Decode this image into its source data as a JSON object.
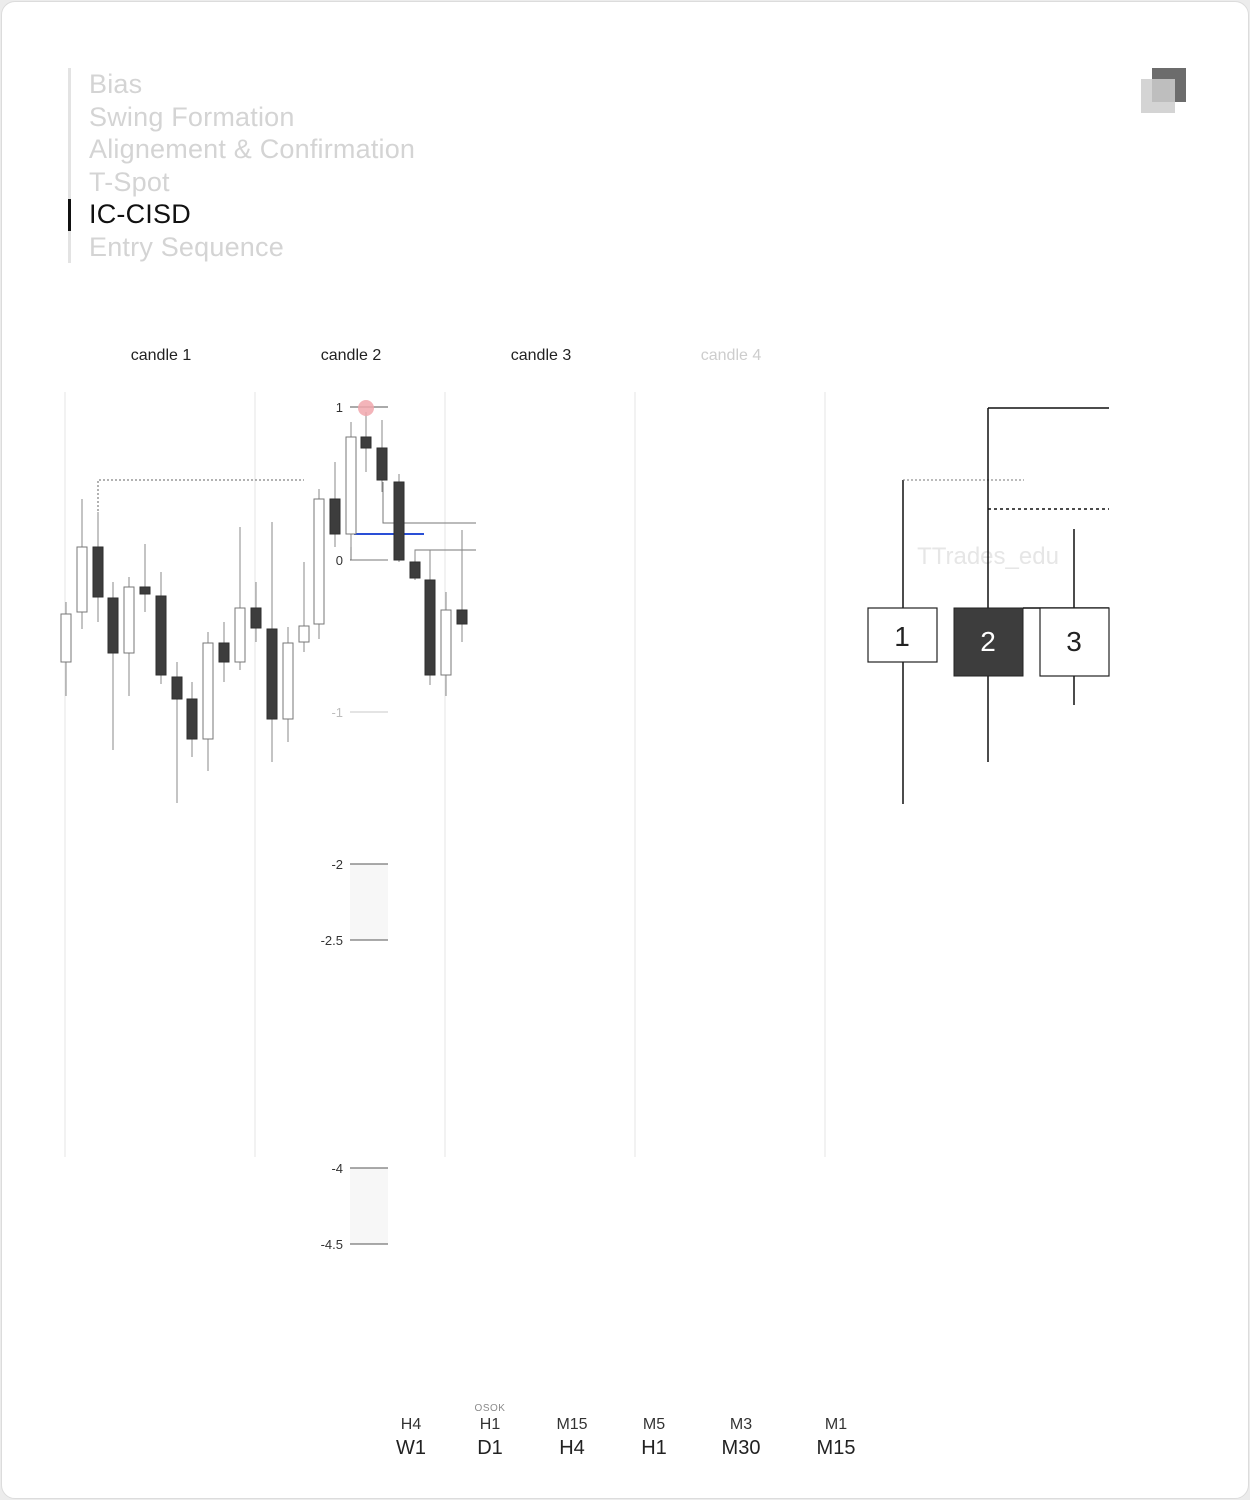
{
  "steps": [
    {
      "label": "Bias",
      "active": false
    },
    {
      "label": "Swing Formation",
      "active": false
    },
    {
      "label": "Alignement & Confirmation",
      "active": false
    },
    {
      "label": "T-Spot",
      "active": false
    },
    {
      "label": "IC-CISD",
      "active": true
    },
    {
      "label": "Entry Sequence",
      "active": false
    }
  ],
  "columns": [
    "candle 1",
    "candle 2",
    "candle 3",
    "candle 4"
  ],
  "fib_levels": [
    "1",
    "0",
    "-1",
    "-2",
    "-2.5",
    "-4",
    "-4.5"
  ],
  "diagram": {
    "watermark": "TTrades_edu",
    "candle_labels": [
      "1",
      "2",
      "3"
    ]
  },
  "timeframes": [
    {
      "top": "",
      "sub": "H4",
      "main": "W1"
    },
    {
      "top": "OSOK",
      "sub": "H1",
      "main": "D1"
    },
    {
      "top": "",
      "sub": "M15",
      "main": "H4"
    },
    {
      "top": "",
      "sub": "M5",
      "main": "H1"
    },
    {
      "top": "",
      "sub": "M3",
      "main": "M30"
    },
    {
      "top": "",
      "sub": "M1",
      "main": "M15"
    }
  ],
  "colors": {
    "bear": "#3d3d3d",
    "bull": "#ffffff",
    "wick": "#888888",
    "equilibrium": "#2a4fd6",
    "high_marker": "#f1a7ad"
  }
}
